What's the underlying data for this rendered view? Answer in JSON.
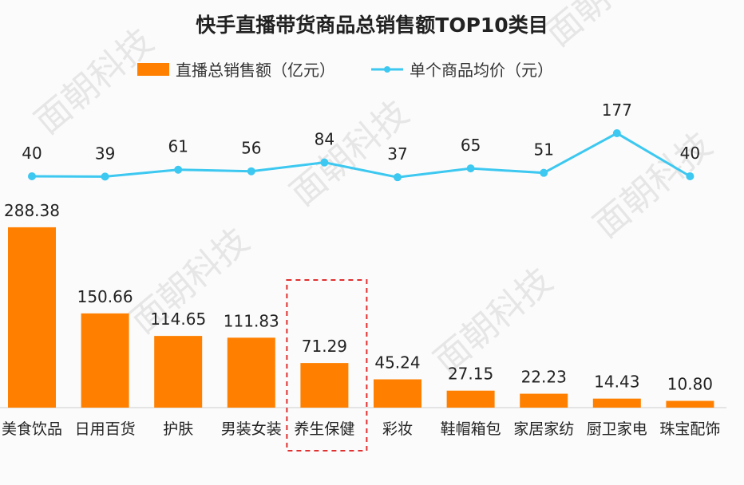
{
  "chart_data": {
    "type": "bar",
    "title": "快手直播带货商品总销售额TOP10类目",
    "categories": [
      "美食饮品",
      "日用百货",
      "护肤",
      "男装女装",
      "养生保健",
      "彩妆",
      "鞋帽箱包",
      "家居家纺",
      "厨卫家电",
      "珠宝配饰"
    ],
    "series": [
      {
        "name": "直播总销售额（亿元）",
        "type": "bar",
        "color": "#ff8000",
        "values": [
          288.38,
          150.66,
          114.65,
          111.83,
          71.29,
          45.24,
          27.15,
          22.23,
          14.43,
          10.8
        ],
        "labels": [
          "288.38",
          "150.66",
          "114.65",
          "111.83",
          "71.29",
          "45.24",
          "27.15",
          "22.23",
          "14.43",
          "10.80"
        ]
      },
      {
        "name": "单个商品均价（元）",
        "type": "line",
        "color": "#3cc8f0",
        "values": [
          40,
          39,
          61,
          56,
          84,
          37,
          65,
          51,
          177,
          40
        ]
      }
    ],
    "highlight_category": "养生保健",
    "highlight_color": "#e03030",
    "legend_position": "top",
    "grid": false,
    "watermark": "面朝科技"
  }
}
